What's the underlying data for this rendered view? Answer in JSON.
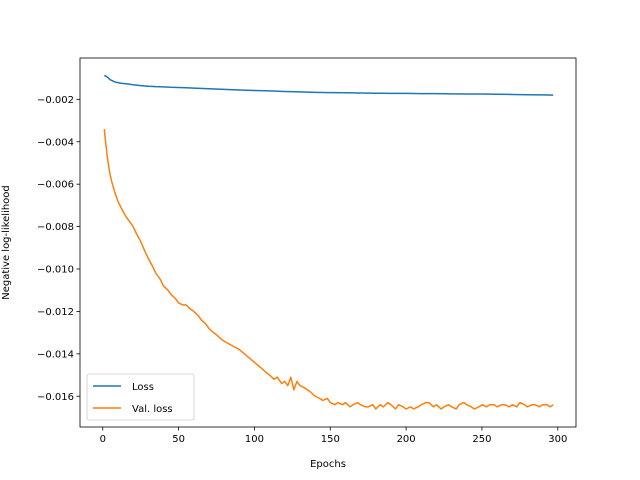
{
  "chart_data": {
    "type": "line",
    "title": "",
    "xlabel": "Epochs",
    "ylabel": "Negative log-likelihood",
    "xlim": [
      -15,
      312
    ],
    "ylim": [
      -0.01745,
      -5e-05
    ],
    "xticks": [
      0,
      50,
      100,
      150,
      200,
      250,
      300
    ],
    "xtick_labels": [
      "0",
      "50",
      "100",
      "150",
      "200",
      "250",
      "300"
    ],
    "yticks": [
      -0.002,
      -0.004,
      -0.006,
      -0.008,
      -0.01,
      -0.012,
      -0.014,
      -0.016
    ],
    "ytick_labels": [
      "−0.002",
      "−0.004",
      "−0.006",
      "−0.008",
      "−0.010",
      "−0.012",
      "−0.014",
      "−0.016"
    ],
    "grid": false,
    "legend_position": "lower-left",
    "series": [
      {
        "name": "Loss",
        "color": "#1f77b4",
        "x": [
          1,
          2,
          3,
          5,
          8,
          12,
          16,
          20,
          25,
          30,
          35,
          40,
          45,
          50,
          55,
          60,
          70,
          80,
          90,
          100,
          110,
          120,
          130,
          140,
          150,
          160,
          170,
          180,
          190,
          200,
          210,
          220,
          230,
          240,
          250,
          260,
          270,
          280,
          290,
          297
        ],
        "y": [
          -0.00088,
          -0.0009,
          -0.00095,
          -0.00108,
          -0.00118,
          -0.00124,
          -0.00127,
          -0.00131,
          -0.00135,
          -0.00138,
          -0.0014,
          -0.00141,
          -0.00143,
          -0.00144,
          -0.00145,
          -0.00147,
          -0.0015,
          -0.00153,
          -0.00156,
          -0.00158,
          -0.0016,
          -0.00163,
          -0.00165,
          -0.00167,
          -0.00168,
          -0.00169,
          -0.0017,
          -0.00171,
          -0.00172,
          -0.00172,
          -0.00173,
          -0.00173,
          -0.00174,
          -0.00175,
          -0.00175,
          -0.00176,
          -0.00177,
          -0.00178,
          -0.00179,
          -0.0018
        ]
      },
      {
        "name": "Val. loss",
        "color": "#ff7f0e",
        "x": [
          1,
          2,
          3,
          4,
          5,
          6,
          8,
          10,
          12,
          15,
          18,
          20,
          22,
          25,
          28,
          30,
          33,
          35,
          38,
          40,
          43,
          45,
          48,
          50,
          53,
          55,
          58,
          60,
          63,
          65,
          68,
          70,
          73,
          75,
          78,
          80,
          85,
          90,
          95,
          100,
          105,
          108,
          110,
          113,
          115,
          118,
          120,
          122,
          124,
          126,
          128,
          130,
          133,
          135,
          137,
          140,
          143,
          145,
          148,
          150,
          153,
          155,
          158,
          160,
          163,
          165,
          168,
          170,
          173,
          175,
          178,
          180,
          183,
          185,
          188,
          190,
          193,
          195,
          198,
          200,
          203,
          205,
          208,
          210,
          213,
          215,
          218,
          220,
          223,
          225,
          228,
          230,
          233,
          235,
          238,
          240,
          243,
          245,
          248,
          250,
          253,
          255,
          258,
          260,
          263,
          265,
          268,
          270,
          273,
          275,
          278,
          280,
          283,
          285,
          288,
          290,
          293,
          295,
          297
        ],
        "y": [
          -0.0034,
          -0.0041,
          -0.0047,
          -0.0052,
          -0.0056,
          -0.0059,
          -0.0064,
          -0.0068,
          -0.0071,
          -0.0075,
          -0.0078,
          -0.008,
          -0.0083,
          -0.0087,
          -0.0092,
          -0.0095,
          -0.0099,
          -0.0102,
          -0.0105,
          -0.0108,
          -0.011,
          -0.0112,
          -0.0114,
          -0.0116,
          -0.0117,
          -0.0117,
          -0.0119,
          -0.012,
          -0.0122,
          -0.0124,
          -0.0126,
          -0.0128,
          -0.013,
          -0.0131,
          -0.0133,
          -0.0134,
          -0.0136,
          -0.0138,
          -0.0141,
          -0.0144,
          -0.0147,
          -0.0149,
          -0.015,
          -0.0152,
          -0.0151,
          -0.0154,
          -0.0153,
          -0.0155,
          -0.0151,
          -0.0157,
          -0.0153,
          -0.0155,
          -0.0156,
          -0.0157,
          -0.0158,
          -0.016,
          -0.0161,
          -0.0162,
          -0.0161,
          -0.0163,
          -0.0164,
          -0.0163,
          -0.0164,
          -0.0163,
          -0.0165,
          -0.0164,
          -0.0163,
          -0.0164,
          -0.0165,
          -0.0165,
          -0.0164,
          -0.0166,
          -0.0164,
          -0.0165,
          -0.0163,
          -0.0164,
          -0.0166,
          -0.0164,
          -0.0165,
          -0.0166,
          -0.0165,
          -0.0166,
          -0.0165,
          -0.0164,
          -0.0163,
          -0.0163,
          -0.0165,
          -0.0164,
          -0.0166,
          -0.0165,
          -0.0164,
          -0.0165,
          -0.0166,
          -0.0164,
          -0.0163,
          -0.0164,
          -0.0165,
          -0.0166,
          -0.0165,
          -0.0164,
          -0.0165,
          -0.0164,
          -0.0164,
          -0.0165,
          -0.0164,
          -0.0164,
          -0.0165,
          -0.0164,
          -0.0165,
          -0.0163,
          -0.0164,
          -0.0165,
          -0.0164,
          -0.0164,
          -0.0165,
          -0.0164,
          -0.0164,
          -0.0165,
          -0.0164
        ]
      }
    ]
  }
}
